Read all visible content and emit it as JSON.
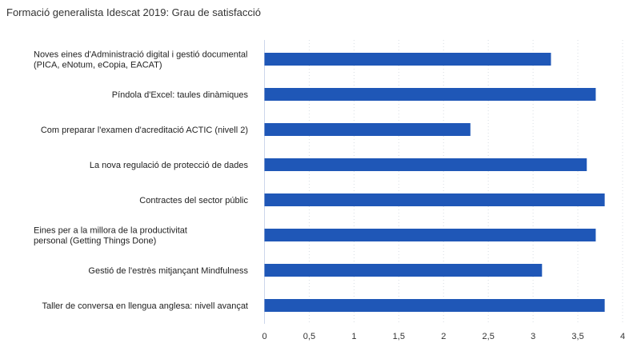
{
  "chart_data": {
    "type": "bar",
    "orientation": "horizontal",
    "title": "Formació generalista Idescat 2019: Grau de satisfacció",
    "categories": [
      [
        "Noves eines d'Administració digital i gestió documental",
        "(PICA, eNotum, eCopia, EACAT)"
      ],
      [
        "Píndola d'Excel: taules dinàmiques"
      ],
      [
        "Com preparar l'examen d'acreditació ACTIC (nivell 2)"
      ],
      [
        "La nova regulació de protecció de dades"
      ],
      [
        "Contractes del sector públic"
      ],
      [
        "Eines per a la millora de la productivitat",
        "personal (Getting Things Done)"
      ],
      [
        "Gestió de l'estrès mitjançant Mindfulness"
      ],
      [
        "Taller de conversa en llengua anglesa: nivell avançat"
      ]
    ],
    "values": [
      3.2,
      3.7,
      2.3,
      3.6,
      3.8,
      3.7,
      3.1,
      3.8
    ],
    "xlim": [
      0,
      4
    ],
    "xticks": [
      0,
      0.5,
      1,
      1.5,
      2,
      2.5,
      3,
      3.5,
      4
    ],
    "xtick_labels": [
      "0",
      "0,5",
      "1",
      "1,5",
      "2",
      "2,5",
      "3",
      "3,5",
      "4"
    ],
    "grid": true,
    "bar_color": "#1f57b7",
    "xlabel": "",
    "ylabel": ""
  }
}
